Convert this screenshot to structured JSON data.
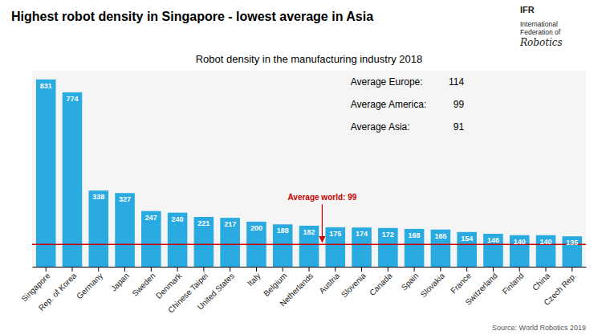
{
  "chart_data": {
    "type": "bar",
    "title": "Highest robot density in Singapore - lowest average in Asia",
    "subtitle": "Robot density in the manufacturing industry 2018",
    "categories": [
      "Singapore",
      "Rep. of Korea",
      "Germany",
      "Japan",
      "Sweden",
      "Denmark",
      "Chinese Taipei",
      "United States",
      "Italy",
      "Belgium",
      "Netherlands",
      "Austria",
      "Slovenia",
      "Canada",
      "Spain",
      "Slovakia",
      "France",
      "Switzerland",
      "Finland",
      "China",
      "Czech Rep."
    ],
    "values": [
      831,
      774,
      338,
      327,
      247,
      240,
      221,
      217,
      200,
      188,
      182,
      175,
      174,
      172,
      168,
      165,
      154,
      146,
      140,
      140,
      135
    ],
    "color": "#29aae1",
    "ylim": [
      0,
      870
    ],
    "tick_labels": "x",
    "grid": false,
    "data_labels": true,
    "reference_lines": [
      {
        "value": 99,
        "label": "Average world: 99",
        "color": "#cc0000"
      }
    ],
    "averages": [
      {
        "label": "Average Europe:",
        "value": 114
      },
      {
        "label": "Average America:",
        "value": 99
      },
      {
        "label": "Average Asia:",
        "value": 91
      }
    ],
    "logo": [
      "IFR",
      "International\nFederation of",
      "Robotics"
    ],
    "source": "Source: World Robotics 2019"
  }
}
